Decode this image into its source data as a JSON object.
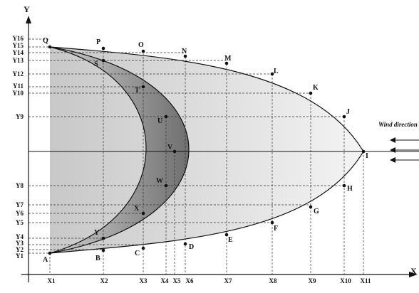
{
  "axes": {
    "x_label": "X",
    "y_label": "Y"
  },
  "annotation": {
    "wind_label": "Wind direction"
  },
  "x_ticks": [
    "X1",
    "X2",
    "X3",
    "X4",
    "X5",
    "X6",
    "X7",
    "X8",
    "X9",
    "X10",
    "X11"
  ],
  "y_ticks": [
    "Y1",
    "Y2",
    "Y3",
    "Y4",
    "Y5",
    "Y6",
    "Y7",
    "Y8",
    "Y9",
    "Y10",
    "Y11",
    "Y12",
    "Y13",
    "Y14",
    "Y15",
    "Y16"
  ],
  "points": [
    "A",
    "B",
    "C",
    "D",
    "E",
    "F",
    "G",
    "H",
    "I",
    "J",
    "K",
    "L",
    "M",
    "N",
    "O",
    "P",
    "Q",
    "S",
    "T",
    "U",
    "V",
    "W",
    "X",
    "Y"
  ],
  "colors": {
    "outer_fill": "#d9d9d9",
    "inner_fill": "#9a9a9a",
    "line": "#111111"
  }
}
